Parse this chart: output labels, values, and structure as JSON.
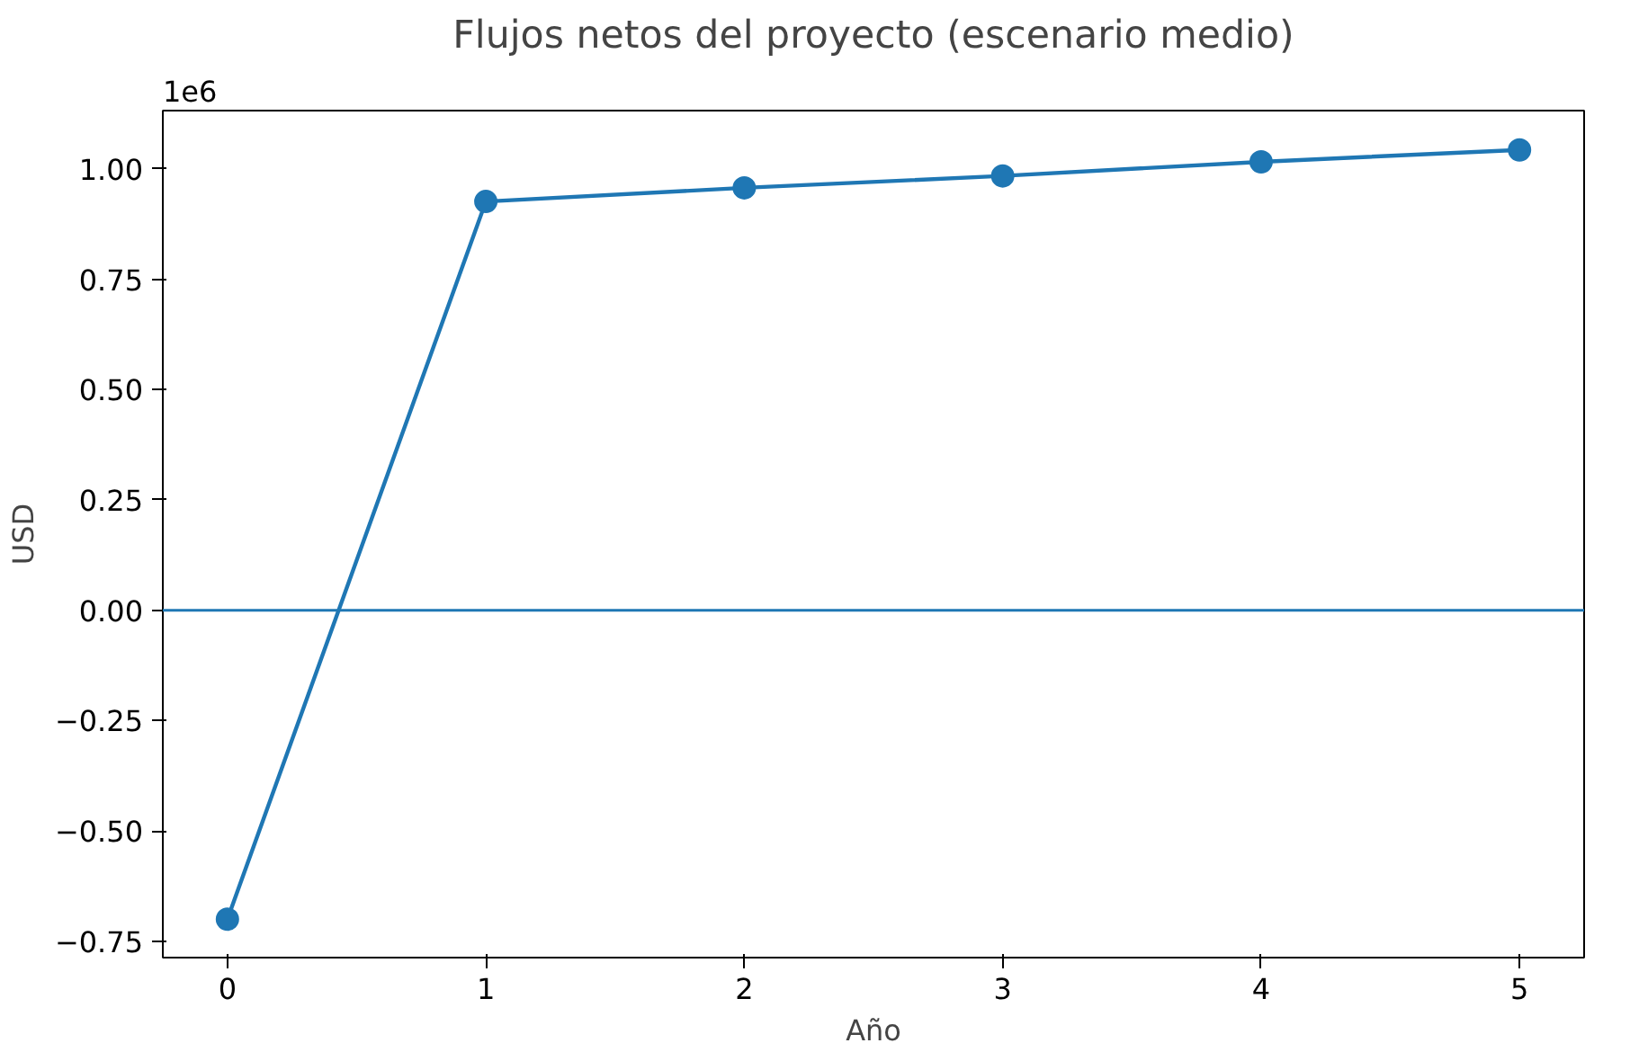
{
  "chart_data": {
    "type": "line",
    "title": "Flujos netos del proyecto (escenario medio)",
    "xlabel": "Año",
    "ylabel": "USD",
    "x": [
      0,
      1,
      2,
      3,
      4,
      5
    ],
    "series": [
      {
        "color": "#1f77b4",
        "values": [
          -0.7,
          0.926,
          0.957,
          0.984,
          1.016,
          1.043
        ]
      }
    ],
    "marker": "circle",
    "line_style": "solid",
    "xlim": [
      -0.25,
      5.25
    ],
    "ylim": [
      -0.787,
      1.132
    ],
    "xticks": [
      0,
      1,
      2,
      3,
      4,
      5
    ],
    "yticks": [
      {
        "value": -0.75,
        "label": "−0.75"
      },
      {
        "value": -0.5,
        "label": "−0.50"
      },
      {
        "value": -0.25,
        "label": "−0.25"
      },
      {
        "value": 0,
        "label": "0.00"
      },
      {
        "value": 0.25,
        "label": "0.25"
      },
      {
        "value": 0.5,
        "label": "0.50"
      },
      {
        "value": 0.75,
        "label": "0.75"
      },
      {
        "value": 1.0,
        "label": "1.00"
      }
    ],
    "ref_lines": [
      {
        "axis": "y",
        "value": 0,
        "color": "#1f77b4"
      }
    ],
    "annotations": [
      "1e6"
    ]
  }
}
